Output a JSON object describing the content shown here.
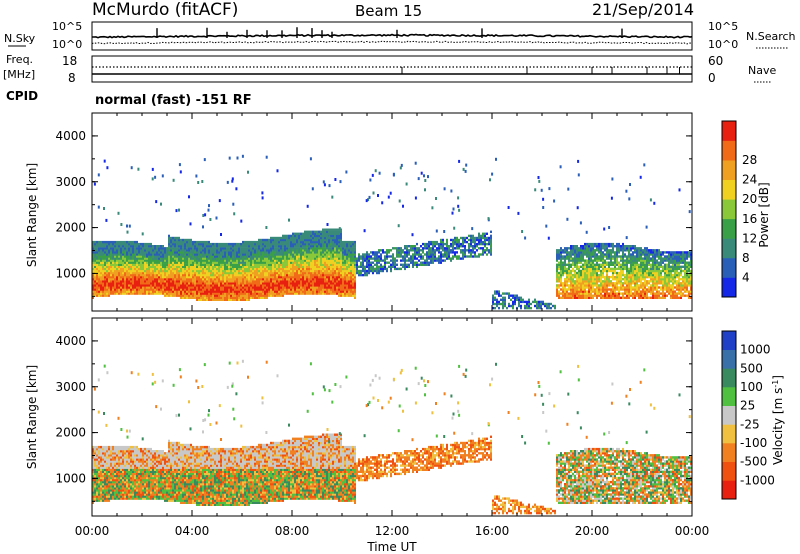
{
  "header": {
    "title": "McMurdo (fitACF)",
    "beam": "Beam 15",
    "date": "21/Sep/2014"
  },
  "noise_panel": {
    "left_label": "N.Sky",
    "right_label": "N.Search",
    "left_ticks": [
      "10^5",
      "10^0"
    ],
    "right_ticks": [
      "10^5",
      "10^0"
    ]
  },
  "freq_panel": {
    "left_label_1": "Freq.",
    "left_label_2": "[MHz]",
    "right_label": "Nave",
    "left_ticks": [
      "18",
      "8"
    ],
    "right_ticks": [
      "60",
      "0"
    ],
    "cpid_label": "CPID",
    "cpid_text": "normal (fast) -151 RF"
  },
  "chart_data": [
    {
      "type": "heatmap",
      "name": "power",
      "ylabel": "Slant Range [km]",
      "ylim": [
        180,
        4500
      ],
      "yticks": [
        "1000",
        "2000",
        "3000",
        "4000"
      ],
      "xlim": [
        "00:00",
        "24:00"
      ],
      "colorbar": {
        "label": "Power [dB]",
        "ticks": [
          "4",
          "8",
          "12",
          "16",
          "20",
          "24",
          "28"
        ],
        "colors": [
          "#1528e8",
          "#2a5fb8",
          "#3a8a7a",
          "#3aa048",
          "#8ac83a",
          "#f0d020",
          "#f0a020",
          "#f06a18",
          "#e82010"
        ]
      },
      "regions": [
        {
          "x": [
            0.0,
            10.5
          ],
          "y": [
            400,
            1700
          ],
          "level": "high"
        },
        {
          "x": [
            10.5,
            16.0
          ],
          "y": [
            1200,
            2000
          ],
          "level": "low"
        },
        {
          "x": [
            16.0,
            18.5
          ],
          "y": [
            200,
            700
          ],
          "level": "low"
        },
        {
          "x": [
            18.0,
            24.0
          ],
          "y": [
            500,
            1700
          ],
          "level": "mid"
        },
        {
          "x": [
            20.0,
            22.0
          ],
          "y": [
            2300,
            2700
          ],
          "level": "low"
        }
      ]
    },
    {
      "type": "heatmap",
      "name": "velocity",
      "ylabel": "Slant Range [km]",
      "ylim": [
        180,
        4500
      ],
      "yticks": [
        "1000",
        "2000",
        "3000",
        "4000"
      ],
      "xlim": [
        "00:00",
        "24:00"
      ],
      "xlabel": "Time UT",
      "xticks": [
        "00:00",
        "04:00",
        "08:00",
        "12:00",
        "16:00",
        "20:00",
        "00:00"
      ],
      "colorbar": {
        "label": "Velocity [m s^-1]",
        "ticks": [
          "1000",
          "500",
          "100",
          "25",
          "-25",
          "-100",
          "-500",
          "-1000"
        ],
        "colors": [
          "#2040c8",
          "#3a70a8",
          "#3a8a60",
          "#50c040",
          "#c8c8c8",
          "#f0c040",
          "#f08020",
          "#f05010",
          "#e82010"
        ]
      },
      "regions": [
        {
          "x": [
            0.0,
            10.5
          ],
          "y": [
            400,
            1700
          ],
          "level": "mixed-green-orange"
        },
        {
          "x": [
            10.5,
            16.0
          ],
          "y": [
            1200,
            2000
          ],
          "level": "orange"
        },
        {
          "x": [
            16.0,
            18.5
          ],
          "y": [
            200,
            700
          ],
          "level": "orange"
        },
        {
          "x": [
            18.0,
            24.0
          ],
          "y": [
            500,
            1700
          ],
          "level": "mixed-orange-green"
        }
      ]
    }
  ]
}
